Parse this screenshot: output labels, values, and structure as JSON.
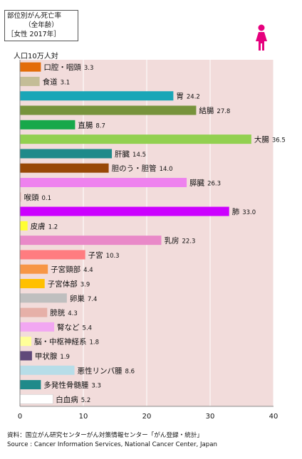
{
  "chart_data": {
    "type": "bar",
    "orientation": "horizontal",
    "title_lines": [
      "部位別がん死亡率",
      "（全年齢）",
      "［女性 2017年］"
    ],
    "ylabel": "人口10万人対",
    "xlim": [
      0,
      40
    ],
    "xticks": [
      0,
      10,
      20,
      30,
      40
    ],
    "grid": true,
    "categories": [
      "口腔・咽頭",
      "食道",
      "胃",
      "結腸",
      "直腸",
      "大腸",
      "肝臓",
      "胆のう・胆管",
      "膵臓",
      "喉頭",
      "肺",
      "皮膚",
      "乳房",
      "子宮",
      "子宮頸部",
      "子宮体部",
      "卵巣",
      "膀胱",
      "腎など",
      "脳・中枢神経系",
      "甲状腺",
      "悪性リンパ腫",
      "多発性骨髄腫",
      "白血病"
    ],
    "values": [
      3.3,
      3.1,
      24.2,
      27.8,
      8.7,
      36.5,
      14.5,
      14.0,
      26.3,
      0.1,
      33.0,
      1.2,
      22.3,
      10.3,
      4.4,
      3.9,
      7.4,
      4.3,
      5.4,
      1.8,
      1.9,
      8.6,
      3.3,
      5.2
    ],
    "value_labels": [
      "3.3",
      "3.1",
      "24.2",
      "27.8",
      "8.7",
      "36.5",
      "14.5",
      "14.0",
      "26.3",
      "0.1",
      "33.0",
      "1.2",
      "22.3",
      "10.3",
      "4.4",
      "3.9",
      "7.4",
      "4.3",
      "5.4",
      "1.8",
      "1.9",
      "8.6",
      "3.3",
      "5.2"
    ],
    "colors": [
      "#e36c0a",
      "#c4bd97",
      "#1aa6b7",
      "#77933c",
      "#17a84a",
      "#92d050",
      "#1f8a8a",
      "#984806",
      "#ee82ee",
      "#e6b0b0",
      "#cc00ff",
      "#ffff33",
      "#e989c8",
      "#ff7c80",
      "#f79646",
      "#ffc000",
      "#bfbfbf",
      "#e6b0a8",
      "#f2a7f2",
      "#ffff99",
      "#60497a",
      "#b7dde8",
      "#1f8a8a",
      "#ffffff"
    ],
    "plot_background": "#f2dcdb"
  },
  "source_lines": [
    "資料：国立がん研究センターがん対策情報センター「がん登録・統計」",
    "Source : Cancer Information Services, National Cancer Center, Japan"
  ],
  "icon": {
    "name": "female-figure-icon",
    "color": "#e6007e"
  }
}
